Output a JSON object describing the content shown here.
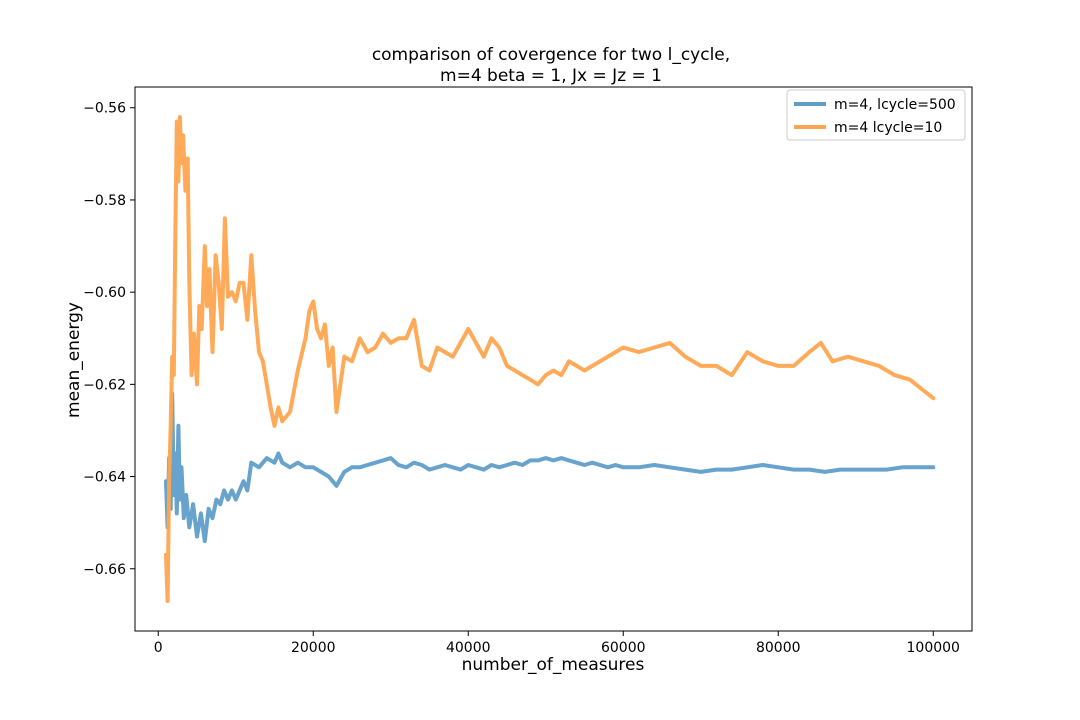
{
  "chart_data": {
    "type": "line",
    "title_lines": [
      "comparison of covergence for two l_cycle,",
      "m=4 beta = 1, Jx = Jz = 1"
    ],
    "xlabel": "number_of_measures",
    "ylabel": "mean_energy",
    "xlim": [
      -3000,
      105000
    ],
    "ylim": [
      -0.6735,
      -0.5555
    ],
    "xticks": [
      0,
      20000,
      40000,
      60000,
      80000,
      100000
    ],
    "xtick_labels": [
      "0",
      "20000",
      "40000",
      "60000",
      "80000",
      "100000"
    ],
    "yticks": [
      -0.66,
      -0.64,
      -0.62,
      -0.6,
      -0.58,
      -0.56
    ],
    "ytick_labels": [
      "−0.66",
      "−0.64",
      "−0.62",
      "−0.60",
      "−0.58",
      "−0.56"
    ],
    "grid": false,
    "legend_position": "top-right",
    "series": [
      {
        "name": "m=4, lcycle=500",
        "color": "#5f9ec9",
        "x": [
          1000,
          1200,
          1400,
          1600,
          1800,
          2000,
          2200,
          2400,
          2600,
          2800,
          3000,
          3300,
          3600,
          4000,
          4500,
          5000,
          5500,
          6000,
          6500,
          7000,
          7500,
          8000,
          8500,
          9000,
          9500,
          10000,
          11000,
          11500,
          12000,
          13000,
          14000,
          15000,
          15500,
          16000,
          17000,
          18000,
          19000,
          20000,
          21000,
          22000,
          23000,
          24000,
          25000,
          26000,
          27000,
          28000,
          29000,
          30000,
          31000,
          32000,
          33000,
          34000,
          35000,
          36000,
          37000,
          38000,
          39000,
          40000,
          41000,
          42000,
          43000,
          44000,
          45000,
          46000,
          47000,
          48000,
          49000,
          50000,
          51000,
          52000,
          53000,
          54000,
          55000,
          56000,
          57000,
          58000,
          59000,
          60000,
          62000,
          64000,
          66000,
          68000,
          70000,
          72000,
          74000,
          76000,
          78000,
          80000,
          82000,
          84000,
          86000,
          88000,
          90000,
          92000,
          94000,
          96000,
          98000,
          100000
        ],
        "y": [
          -0.641,
          -0.651,
          -0.636,
          -0.647,
          -0.622,
          -0.644,
          -0.635,
          -0.648,
          -0.629,
          -0.645,
          -0.638,
          -0.649,
          -0.644,
          -0.651,
          -0.646,
          -0.653,
          -0.648,
          -0.654,
          -0.647,
          -0.649,
          -0.645,
          -0.646,
          -0.643,
          -0.645,
          -0.643,
          -0.645,
          -0.641,
          -0.643,
          -0.637,
          -0.638,
          -0.636,
          -0.637,
          -0.635,
          -0.637,
          -0.638,
          -0.637,
          -0.638,
          -0.638,
          -0.639,
          -0.64,
          -0.642,
          -0.639,
          -0.638,
          -0.638,
          -0.6375,
          -0.637,
          -0.6365,
          -0.636,
          -0.6375,
          -0.638,
          -0.637,
          -0.6375,
          -0.6385,
          -0.638,
          -0.6375,
          -0.638,
          -0.6385,
          -0.6375,
          -0.638,
          -0.6385,
          -0.6375,
          -0.638,
          -0.6375,
          -0.637,
          -0.6375,
          -0.6365,
          -0.6365,
          -0.636,
          -0.6365,
          -0.636,
          -0.6365,
          -0.637,
          -0.6375,
          -0.637,
          -0.6375,
          -0.638,
          -0.6375,
          -0.638,
          -0.638,
          -0.6375,
          -0.638,
          -0.6385,
          -0.639,
          -0.6385,
          -0.6385,
          -0.638,
          -0.6375,
          -0.638,
          -0.6385,
          -0.6385,
          -0.639,
          -0.6385,
          -0.6385,
          -0.6385,
          -0.6385,
          -0.638,
          -0.638,
          -0.638
        ]
      },
      {
        "name": "m=4 lcycle=10",
        "color": "#ffa54f",
        "x": [
          1000,
          1200,
          1400,
          1600,
          1800,
          2000,
          2200,
          2400,
          2600,
          2800,
          3000,
          3200,
          3500,
          3800,
          4000,
          4300,
          4600,
          5000,
          5300,
          5600,
          6000,
          6300,
          6600,
          7000,
          7400,
          7800,
          8200,
          8600,
          9000,
          9500,
          10000,
          10500,
          11000,
          11500,
          12000,
          12500,
          13000,
          13500,
          14000,
          14500,
          15000,
          15500,
          16000,
          17000,
          18000,
          19000,
          19500,
          20000,
          20500,
          21000,
          21500,
          22000,
          22500,
          23000,
          24000,
          25000,
          26000,
          27000,
          28000,
          29000,
          30000,
          31000,
          32000,
          33000,
          34000,
          35000,
          36000,
          37000,
          38000,
          39000,
          40000,
          41000,
          42000,
          43000,
          44000,
          45000,
          46000,
          47000,
          48000,
          49000,
          50000,
          51000,
          52000,
          53000,
          54000,
          55000,
          56000,
          57000,
          58000,
          60000,
          62000,
          64000,
          66000,
          68000,
          70000,
          72000,
          74000,
          76000,
          78000,
          80000,
          82000,
          84000,
          85500,
          87000,
          89000,
          91000,
          93000,
          95000,
          97000,
          98500,
          100000
        ],
        "y": [
          -0.657,
          -0.667,
          -0.641,
          -0.629,
          -0.614,
          -0.618,
          -0.588,
          -0.563,
          -0.576,
          -0.562,
          -0.572,
          -0.566,
          -0.578,
          -0.571,
          -0.598,
          -0.618,
          -0.609,
          -0.62,
          -0.603,
          -0.608,
          -0.59,
          -0.603,
          -0.595,
          -0.613,
          -0.592,
          -0.598,
          -0.608,
          -0.584,
          -0.601,
          -0.6,
          -0.602,
          -0.598,
          -0.598,
          -0.606,
          -0.592,
          -0.604,
          -0.613,
          -0.615,
          -0.62,
          -0.625,
          -0.629,
          -0.625,
          -0.628,
          -0.626,
          -0.617,
          -0.61,
          -0.604,
          -0.602,
          -0.608,
          -0.61,
          -0.607,
          -0.616,
          -0.612,
          -0.626,
          -0.614,
          -0.615,
          -0.61,
          -0.613,
          -0.612,
          -0.609,
          -0.611,
          -0.61,
          -0.61,
          -0.606,
          -0.616,
          -0.617,
          -0.612,
          -0.613,
          -0.614,
          -0.611,
          -0.608,
          -0.611,
          -0.614,
          -0.61,
          -0.612,
          -0.616,
          -0.617,
          -0.618,
          -0.619,
          -0.62,
          -0.618,
          -0.617,
          -0.618,
          -0.615,
          -0.616,
          -0.617,
          -0.616,
          -0.615,
          -0.614,
          -0.612,
          -0.613,
          -0.612,
          -0.611,
          -0.614,
          -0.616,
          -0.616,
          -0.618,
          -0.613,
          -0.615,
          -0.616,
          -0.616,
          -0.613,
          -0.611,
          -0.615,
          -0.614,
          -0.615,
          -0.616,
          -0.618,
          -0.619,
          -0.621,
          -0.623
        ]
      }
    ]
  }
}
